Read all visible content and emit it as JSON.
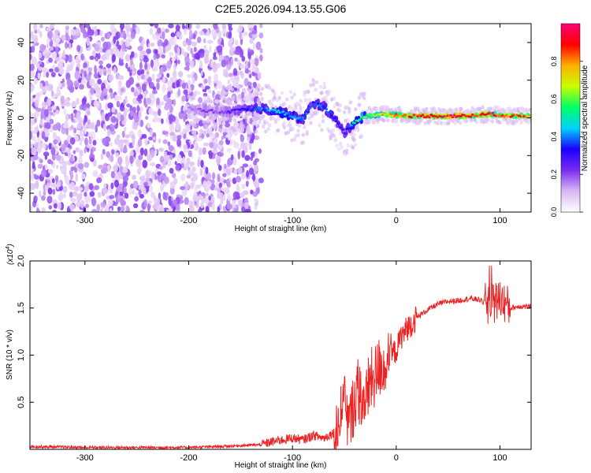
{
  "title": "C2E5.2026.094.13.55.G06",
  "chart_data": [
    {
      "type": "heatmap",
      "name": "spectrogram",
      "xlabel": "Height of straight line (km)",
      "ylabel": "Frequency (Hz)",
      "xlim": [
        -353,
        130
      ],
      "ylim": [
        -50,
        50
      ],
      "xticks": [
        -300,
        -200,
        -100,
        0,
        100
      ],
      "yticks": [
        -40,
        -20,
        0,
        20,
        40
      ],
      "noise_region": {
        "x_min": -353,
        "x_max": -130,
        "y_min": -50,
        "y_max": 50
      },
      "signal_ridge": {
        "x": [
          -200,
          -185,
          -170,
          -150,
          -130,
          -110,
          -90,
          -80,
          -70,
          -60,
          -50,
          -40,
          -30,
          -10,
          10,
          30,
          50,
          70,
          90,
          110,
          130
        ],
        "y": [
          5,
          4,
          3,
          4,
          5,
          3,
          -1,
          8,
          6,
          0,
          -8,
          -2,
          1,
          2,
          1,
          1,
          1,
          1,
          2,
          1,
          1
        ],
        "amplitude": [
          0.15,
          0.2,
          0.2,
          0.3,
          0.4,
          0.45,
          0.4,
          0.35,
          0.4,
          0.35,
          0.3,
          0.5,
          0.6,
          0.75,
          0.85,
          0.95,
          0.95,
          0.95,
          0.9,
          0.85,
          0.85
        ]
      },
      "colorbar": {
        "label": "Normalized spectral amplitude",
        "range": [
          0,
          1
        ],
        "ticks": [
          "0.0",
          "0.2",
          "0.4",
          "0.6",
          "0.8"
        ],
        "tick_values": [
          0.0,
          0.2,
          0.4,
          0.6,
          0.8
        ],
        "colors": [
          "#ffffff",
          "#d9b8f2",
          "#7a2cf0",
          "#1a00ff",
          "#00d0ff",
          "#00ff66",
          "#c8ff00",
          "#ffb000",
          "#ff0000",
          "#ff0077"
        ]
      }
    },
    {
      "type": "line",
      "name": "snr",
      "xlabel": "Height of straight line (km)",
      "ylabel": "SNR (10 * v/v)",
      "y_scale_label": "(x10",
      "y_scale_exp": "4",
      "y_scale_close": ")",
      "xlim": [
        -353,
        130
      ],
      "ylim": [
        0,
        2.0
      ],
      "xticks": [
        -300,
        -200,
        -100,
        0,
        100
      ],
      "yticks": [
        "0.5",
        "1.0",
        "1.5",
        "2.0"
      ],
      "ytick_values": [
        0.5,
        1.0,
        1.5,
        2.0
      ],
      "line_color": "#ee2222",
      "series": [
        {
          "name": "SNR",
          "x": [
            -353,
            -300,
            -250,
            -200,
            -170,
            -150,
            -130,
            -120,
            -110,
            -100,
            -90,
            -80,
            -70,
            -60,
            -55,
            -50,
            -45,
            -40,
            -35,
            -30,
            -25,
            -20,
            -15,
            -10,
            -5,
            0,
            5,
            10,
            20,
            30,
            40,
            50,
            60,
            70,
            80,
            90,
            100,
            110,
            120,
            130
          ],
          "y": [
            0.03,
            0.02,
            0.02,
            0.02,
            0.03,
            0.04,
            0.05,
            0.08,
            0.1,
            0.12,
            0.1,
            0.15,
            0.12,
            0.18,
            0.28,
            0.45,
            0.25,
            0.55,
            0.6,
            0.5,
            0.72,
            0.78,
            0.9,
            0.85,
            1.0,
            1.05,
            1.2,
            1.28,
            1.4,
            1.48,
            1.54,
            1.57,
            1.58,
            1.6,
            1.59,
            1.52,
            1.6,
            1.5,
            1.52,
            1.51
          ]
        }
      ]
    }
  ]
}
